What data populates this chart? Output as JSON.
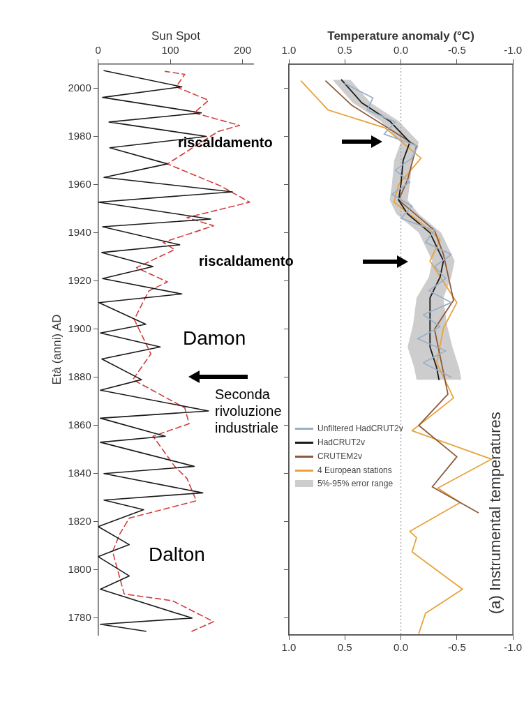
{
  "chart_data": [
    {
      "type": "line",
      "orientation": "horizontal",
      "x2label": "Sun Spot",
      "ylabel": "Età (anni) AD",
      "x2lim": [
        0,
        215
      ],
      "x2ticks": [
        0,
        100,
        200
      ],
      "ylim": [
        1773,
        2010
      ],
      "yticks": [
        1780,
        1800,
        1820,
        1840,
        1860,
        1880,
        1900,
        1920,
        1940,
        1960,
        1980,
        2000
      ],
      "annotations": [
        "Damon",
        "Seconda rivoluzione industriale",
        "Dalton"
      ],
      "series": [
        {
          "color": "#1a1a1a",
          "axis": "x2",
          "line_style": "solid",
          "x": [
            1774.5,
            1777.4,
            1780,
            1792,
            1797.5,
            1805.5,
            1810.5,
            1818,
            1825,
            1829,
            1832,
            1840,
            1843,
            1853,
            1855.5,
            1863,
            1866,
            1874.6,
            1879,
            1887.6,
            1892.6,
            1898.4,
            1902,
            1911,
            1914.6,
            1921,
            1926,
            1931.8,
            1935,
            1942.5,
            1945.7,
            1952.7,
            1957,
            1963,
            1968.6,
            1975.3,
            1980,
            1986,
            1989.8,
            1996.2,
            2000.6,
            2007.3
          ],
          "values": [
            66,
            3,
            130,
            3,
            43,
            0,
            43,
            0,
            63,
            8,
            145,
            8,
            133,
            3,
            93,
            3,
            153,
            3,
            60,
            5,
            86,
            3,
            66,
            1,
            116,
            6,
            76,
            5,
            113,
            6,
            156,
            0,
            186,
            8,
            96,
            16,
            150,
            15,
            143,
            6,
            116,
            8
          ]
        },
        {
          "color": "#d23c3c",
          "axis": "x2",
          "line_style": "dashed",
          "x": [
            1774.5,
            1778.5,
            1787.2,
            1790,
            1807.6,
            1815,
            1821.5,
            1828.7,
            1838,
            1843,
            1855.5,
            1860.7,
            1867.3,
            1879,
            1889.7,
            1904,
            1915.8,
            1919.6,
            1925.5,
            1933,
            1936,
            1942.9,
            1946.3,
            1952.7,
            1959.4,
            1968.6,
            1982,
            1984.6,
            1989.8,
            1995,
            2000.6,
            2005.8,
            2007
          ],
          "values": [
            130,
            160,
            103,
            36,
            20,
            30,
            43,
            136,
            123,
            106,
            76,
            126,
            120,
            48,
            73,
            50,
            70,
            96,
            53,
            106,
            90,
            160,
            123,
            210,
            170,
            96,
            166,
            196,
            133,
            153,
            108,
            120,
            93
          ]
        }
      ]
    },
    {
      "type": "line",
      "orientation": "horizontal",
      "x2label": "Temperature anomaly (°C)",
      "xlim": [
        1,
        -1
      ],
      "xticks": [
        {
          "value": 1,
          "label": "1.0"
        },
        {
          "value": 0.5,
          "label": "0.5"
        },
        {
          "value": 0,
          "label": "0.0"
        },
        {
          "value": -0.5,
          "label": "-0.5"
        },
        {
          "value": -1,
          "label": "-1.0"
        }
      ],
      "x2lim": [
        1,
        -1
      ],
      "x2ticks": [
        {
          "value": 1,
          "label": "1.0"
        },
        {
          "value": 0.5,
          "label": "0.5"
        },
        {
          "value": 0,
          "label": "0.0"
        },
        {
          "value": -0.5,
          "label": "-0.5"
        },
        {
          "value": -1,
          "label": "-1.0"
        }
      ],
      "ylim": [
        1773,
        2010
      ],
      "yticks": [
        {
          "value": 1780,
          "label": null
        },
        {
          "value": 1800,
          "label": null
        },
        {
          "value": 1820,
          "label": null
        },
        {
          "value": 1840,
          "label": null
        },
        {
          "value": 1860,
          "label": null
        },
        {
          "value": 1880,
          "label": null
        },
        {
          "value": 1900,
          "label": null
        },
        {
          "value": 1920,
          "label": null
        },
        {
          "value": 1940,
          "label": null
        },
        {
          "value": 1960,
          "label": null
        },
        {
          "value": 1980,
          "label": null
        },
        {
          "value": 2000,
          "label": null
        }
      ],
      "tick_labels": "x",
      "legend": "left",
      "ref_lines": [
        {
          "axis": "x",
          "value": 0,
          "color": "#9a9a9a",
          "line_style": "dotted"
        }
      ],
      "annotations": [
        "riscaldamento",
        "riscaldamento",
        "(a) Instrumental temperatures",
        "5%-95% error range"
      ],
      "series": [
        {
          "name": "Unfiltered HadCRUT2v",
          "color": "#9bb0c8",
          "x": [
            1880,
            1886,
            1891,
            1896,
            1901,
            1906,
            1911,
            1916,
            1921,
            1926,
            1931,
            1936,
            1941,
            1946,
            1951,
            1956,
            1961,
            1966,
            1971,
            1976,
            1981,
            1986,
            1991,
            1996,
            2002
          ],
          "values": [
            -0.45,
            -0.2,
            -0.4,
            -0.15,
            -0.35,
            -0.2,
            -0.45,
            -0.25,
            -0.4,
            -0.3,
            -0.45,
            -0.22,
            -0.3,
            0,
            -0.1,
            0.08,
            -0.08,
            0.05,
            -0.1,
            -0.15,
            0.15,
            0.05,
            0.3,
            0.25,
            0.5
          ]
        },
        {
          "name": "HadCRUT2v",
          "color": "#1a1a1a",
          "x": [
            1879,
            1883.9,
            1892.6,
            1902,
            1913,
            1921.6,
            1928.3,
            1940,
            1947.8,
            1953.6,
            1960,
            1970,
            1977.6,
            1986.4,
            1994,
            2003.5
          ],
          "values": [
            -0.34,
            -0.32,
            -0.26,
            -0.26,
            -0.26,
            -0.35,
            -0.38,
            -0.26,
            -0.06,
            0.02,
            0,
            -0.02,
            -0.08,
            0.1,
            0.35,
            0.53
          ],
          "lower": [
            -0.54,
            -0.52,
            -0.46,
            -0.41,
            -0.38,
            -0.45,
            -0.48,
            -0.36,
            -0.16,
            -0.06,
            -0.08,
            -0.1,
            -0.16,
            0.02,
            0.27,
            0.45
          ],
          "upper": [
            -0.14,
            -0.12,
            -0.06,
            -0.11,
            -0.14,
            -0.25,
            -0.28,
            -0.16,
            0.04,
            0.1,
            0.08,
            0.06,
            0,
            0.18,
            0.43,
            0.61
          ]
        },
        {
          "name": "CRUTEM2v",
          "color": "#8c5a3a",
          "x": [
            1823.8,
            1834.5,
            1847,
            1860,
            1873,
            1900,
            1912,
            1931,
            1941,
            1953.6,
            1962,
            1976,
            1993,
            2003
          ],
          "values": [
            -0.69,
            -0.28,
            -0.5,
            -0.16,
            -0.42,
            -0.3,
            -0.47,
            -0.38,
            -0.3,
            0.02,
            -0.06,
            -0.14,
            0.44,
            0.67
          ]
        },
        {
          "name": "4 European stations",
          "color": "#e8a33c",
          "x": [
            1773.6,
            1782,
            1792,
            1807.5,
            1813.4,
            1816,
            1828,
            1834,
            1846,
            1857.8,
            1871.4,
            1886,
            1900.4,
            1911,
            1928.3,
            1937,
            1941,
            1952.7,
            1960,
            1971,
            1983.5,
            1991,
            2003
          ],
          "values": [
            -0.16,
            -0.22,
            -0.55,
            -0.1,
            -0.14,
            -0.08,
            -0.53,
            -0.33,
            -0.81,
            -0.1,
            -0.47,
            -0.32,
            -0.38,
            -0.5,
            -0.26,
            -0.35,
            -0.26,
            0.06,
            0.02,
            -0.18,
            0.14,
            0.65,
            0.89
          ]
        }
      ]
    }
  ]
}
